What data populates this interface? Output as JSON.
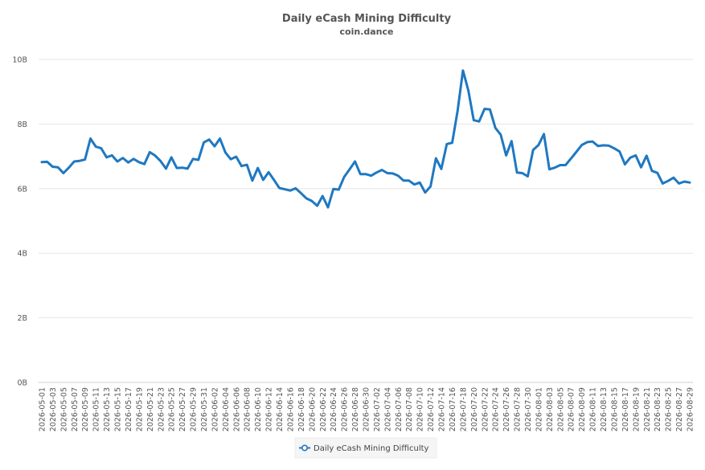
{
  "chart_data": {
    "type": "line",
    "title": "Daily eCash Mining Difficulty",
    "subtitle": "coin.dance",
    "xlabel": "",
    "ylabel": "",
    "ylim": [
      0,
      10
    ],
    "y_unit": "B",
    "y_ticks": [
      "0B",
      "2B",
      "4B",
      "6B",
      "8B",
      "10B"
    ],
    "grid": true,
    "legend_position": "bottom-center",
    "series_color": "#1f78c1",
    "x": [
      "2026-05-01",
      "2026-05-02",
      "2026-05-03",
      "2026-05-04",
      "2026-05-05",
      "2026-05-06",
      "2026-05-07",
      "2026-05-08",
      "2026-05-09",
      "2026-05-10",
      "2026-05-11",
      "2026-05-12",
      "2026-05-13",
      "2026-05-14",
      "2026-05-15",
      "2026-05-16",
      "2026-05-17",
      "2026-05-18",
      "2026-05-19",
      "2026-05-20",
      "2026-05-21",
      "2026-05-22",
      "2026-05-23",
      "2026-05-24",
      "2026-05-25",
      "2026-05-26",
      "2026-05-27",
      "2026-05-28",
      "2026-05-29",
      "2026-05-30",
      "2026-05-31",
      "2026-06-01",
      "2026-06-02",
      "2026-06-03",
      "2026-06-04",
      "2026-06-05",
      "2026-06-06",
      "2026-06-07",
      "2026-06-08",
      "2026-06-09",
      "2026-06-10",
      "2026-06-11",
      "2026-06-12",
      "2026-06-13",
      "2026-06-14",
      "2026-06-15",
      "2026-06-16",
      "2026-06-17",
      "2026-06-18",
      "2026-06-19",
      "2026-06-20",
      "2026-06-21",
      "2026-06-22",
      "2026-06-23",
      "2026-06-24",
      "2026-06-25",
      "2026-06-26",
      "2026-06-27",
      "2026-06-28",
      "2026-06-29",
      "2026-06-30",
      "2026-07-01",
      "2026-07-02",
      "2026-07-03",
      "2026-07-04",
      "2026-07-05",
      "2026-07-06",
      "2026-07-07",
      "2026-07-08",
      "2026-07-09",
      "2026-07-10",
      "2026-07-11",
      "2026-07-12",
      "2026-07-13",
      "2026-07-14",
      "2026-07-15",
      "2026-07-16",
      "2026-07-17",
      "2026-07-18",
      "2026-07-19",
      "2026-07-20",
      "2026-07-21",
      "2026-07-22",
      "2026-07-23",
      "2026-07-24",
      "2026-07-25",
      "2026-07-26",
      "2026-07-27",
      "2026-07-28",
      "2026-07-29",
      "2026-07-30",
      "2026-07-31",
      "2026-08-01",
      "2026-08-02",
      "2026-08-03",
      "2026-08-04",
      "2026-08-05",
      "2026-08-06",
      "2026-08-07",
      "2026-08-08",
      "2026-08-09",
      "2026-08-10",
      "2026-08-11",
      "2026-08-12",
      "2026-08-13",
      "2026-08-14",
      "2026-08-15",
      "2026-08-16",
      "2026-08-17",
      "2026-08-18",
      "2026-08-19",
      "2026-08-20",
      "2026-08-21",
      "2026-08-22",
      "2026-08-23",
      "2026-08-24",
      "2026-08-25",
      "2026-08-26",
      "2026-08-27",
      "2026-08-28",
      "2026-08-29"
    ],
    "series": [
      {
        "name": "Daily eCash Mining Difficulty",
        "values": [
          6.82,
          6.83,
          6.68,
          6.66,
          6.48,
          6.65,
          6.84,
          6.86,
          6.9,
          7.55,
          7.3,
          7.25,
          6.97,
          7.03,
          6.84,
          6.95,
          6.81,
          6.92,
          6.82,
          6.76,
          7.13,
          7.02,
          6.85,
          6.62,
          6.97,
          6.64,
          6.65,
          6.62,
          6.92,
          6.89,
          7.43,
          7.52,
          7.31,
          7.55,
          7.12,
          6.91,
          6.99,
          6.7,
          6.74,
          6.25,
          6.64,
          6.27,
          6.51,
          6.27,
          6.02,
          5.98,
          5.94,
          6.01,
          5.86,
          5.7,
          5.62,
          5.47,
          5.77,
          5.42,
          5.99,
          5.97,
          6.36,
          6.6,
          6.84,
          6.45,
          6.45,
          6.4,
          6.5,
          6.58,
          6.48,
          6.47,
          6.4,
          6.25,
          6.25,
          6.13,
          6.19,
          5.88,
          6.07,
          6.94,
          6.61,
          7.38,
          7.42,
          8.4,
          9.66,
          9.04,
          8.12,
          8.08,
          8.47,
          8.45,
          7.88,
          7.67,
          7.03,
          7.47,
          6.5,
          6.48,
          6.38,
          7.2,
          7.35,
          7.69,
          6.6,
          6.65,
          6.73,
          6.73,
          6.93,
          7.14,
          7.35,
          7.44,
          7.46,
          7.32,
          7.34,
          7.33,
          7.25,
          7.15,
          6.75,
          6.96,
          7.03,
          6.66,
          7.02,
          6.55,
          6.49,
          6.16,
          6.24,
          6.34,
          6.16,
          6.22,
          6.19
        ]
      }
    ]
  },
  "legend": {
    "label": "Daily eCash Mining Difficulty"
  }
}
